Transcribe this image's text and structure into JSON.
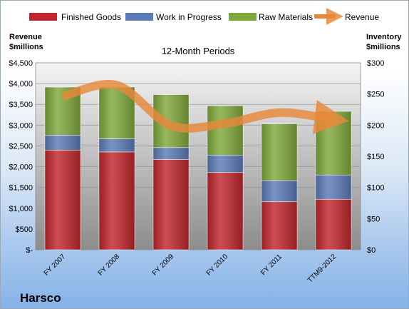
{
  "chart_data": {
    "type": "bar",
    "stacked": true,
    "title": "12-Month Periods",
    "company": "Harsco",
    "categories": [
      "FY 2007",
      "FY 2008",
      "FY 2009",
      "FY 2010",
      "FY 2011",
      "TTM9-2012"
    ],
    "left_axis_title": [
      "Revenue",
      "$millions"
    ],
    "right_axis_title": [
      "Inventory",
      "$millions"
    ],
    "left_ticks": [
      "$-",
      "$500",
      "$1,000",
      "$1,500",
      "$2,000",
      "$2,500",
      "$3,000",
      "$3,500",
      "$4,000",
      "$4,500"
    ],
    "right_ticks": [
      "$0",
      "$50",
      "$100",
      "$150",
      "$200",
      "$250",
      "$300"
    ],
    "ylim_left": [
      0,
      4500
    ],
    "ylim_right": [
      0,
      300
    ],
    "legend_position": "top",
    "grid": true,
    "series": [
      {
        "name": "Finished Goods",
        "axis": "right",
        "color": "#c0262b",
        "values": [
          160,
          157,
          145,
          124,
          77,
          81
        ]
      },
      {
        "name": "Work in Progress",
        "axis": "right",
        "color": "#5b7bb8",
        "values": [
          24,
          21,
          19,
          28,
          34,
          39
        ]
      },
      {
        "name": "Raw Materials",
        "axis": "right",
        "color": "#7fa83a",
        "values": [
          77,
          83,
          85,
          79,
          91,
          102
        ]
      }
    ],
    "line_series": {
      "name": "Revenue",
      "axis": "left",
      "color": "#e8893a",
      "values": [
        3690,
        3960,
        2990,
        3040,
        3300,
        3140
      ]
    }
  }
}
